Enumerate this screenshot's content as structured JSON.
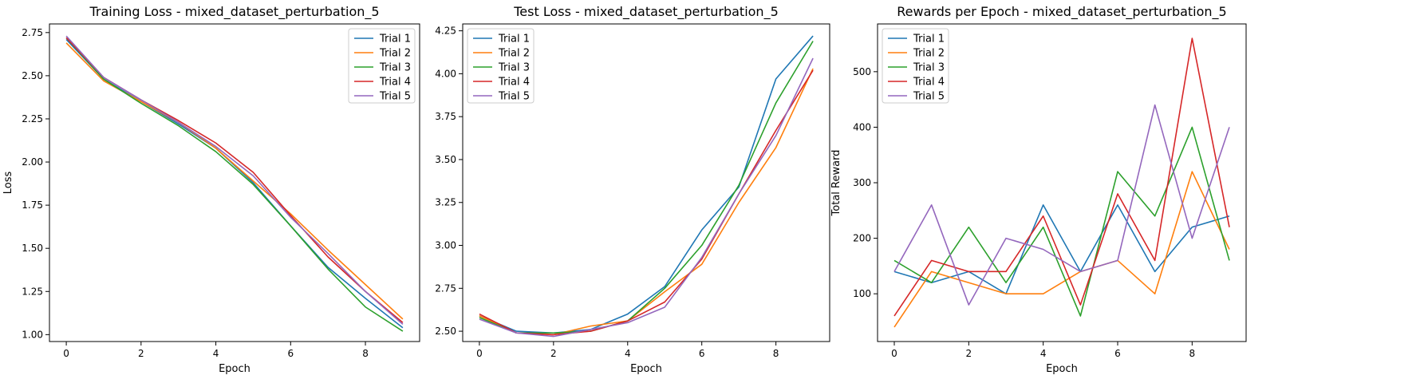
{
  "colors": [
    "#1f77b4",
    "#ff7f0e",
    "#2ca02c",
    "#d62728",
    "#9467bd"
  ],
  "chart_data": [
    {
      "type": "line",
      "title": "Training Loss - mixed_dataset_perturbation_5",
      "xlabel": "Epoch",
      "ylabel": "Loss",
      "x": [
        0,
        1,
        2,
        3,
        4,
        5,
        6,
        7,
        8,
        9
      ],
      "xlim": [
        -0.45,
        9.45
      ],
      "ylim": [
        0.96,
        2.8
      ],
      "xticks": [
        0,
        2,
        4,
        6,
        8
      ],
      "yticks": [
        1.0,
        1.25,
        1.5,
        1.75,
        2.0,
        2.25,
        2.5,
        2.75
      ],
      "legend": "top-right",
      "series": [
        {
          "name": "Trial 1",
          "values": [
            2.71,
            2.48,
            2.35,
            2.22,
            2.08,
            1.88,
            1.63,
            1.39,
            1.21,
            1.04
          ]
        },
        {
          "name": "Trial 2",
          "values": [
            2.69,
            2.47,
            2.35,
            2.23,
            2.08,
            1.89,
            1.7,
            1.49,
            1.29,
            1.09
          ]
        },
        {
          "name": "Trial 3",
          "values": [
            2.72,
            2.48,
            2.34,
            2.21,
            2.06,
            1.87,
            1.63,
            1.38,
            1.16,
            1.02
          ]
        },
        {
          "name": "Trial 4",
          "values": [
            2.72,
            2.49,
            2.36,
            2.24,
            2.11,
            1.94,
            1.69,
            1.45,
            1.25,
            1.07
          ]
        },
        {
          "name": "Trial 5",
          "values": [
            2.73,
            2.49,
            2.36,
            2.23,
            2.09,
            1.92,
            1.68,
            1.47,
            1.25,
            1.06
          ]
        }
      ]
    },
    {
      "type": "line",
      "title": "Test Loss - mixed_dataset_perturbation_5",
      "xlabel": "Epoch",
      "ylabel": "",
      "x": [
        0,
        1,
        2,
        3,
        4,
        5,
        6,
        7,
        8,
        9
      ],
      "xlim": [
        -0.45,
        9.45
      ],
      "ylim": [
        2.44,
        4.29
      ],
      "xticks": [
        0,
        2,
        4,
        6,
        8
      ],
      "yticks": [
        2.5,
        2.75,
        3.0,
        3.25,
        3.5,
        3.75,
        4.0,
        4.25
      ],
      "legend": "top-left",
      "series": [
        {
          "name": "Trial 1",
          "values": [
            2.59,
            2.5,
            2.49,
            2.51,
            2.6,
            2.76,
            3.09,
            3.34,
            3.97,
            4.22
          ]
        },
        {
          "name": "Trial 2",
          "values": [
            2.59,
            2.49,
            2.48,
            2.53,
            2.56,
            2.73,
            2.89,
            3.25,
            3.57,
            4.03
          ]
        },
        {
          "name": "Trial 3",
          "values": [
            2.58,
            2.49,
            2.49,
            2.5,
            2.56,
            2.75,
            3.0,
            3.35,
            3.83,
            4.19
          ]
        },
        {
          "name": "Trial 4",
          "values": [
            2.6,
            2.49,
            2.48,
            2.5,
            2.56,
            2.67,
            2.92,
            3.3,
            3.67,
            4.02
          ]
        },
        {
          "name": "Trial 5",
          "values": [
            2.57,
            2.49,
            2.47,
            2.51,
            2.55,
            2.64,
            2.93,
            3.3,
            3.64,
            4.09
          ]
        }
      ]
    },
    {
      "type": "line",
      "title": "Rewards per Epoch - mixed_dataset_perturbation_5",
      "xlabel": "Epoch",
      "ylabel": "Total Reward",
      "x": [
        0,
        1,
        2,
        3,
        4,
        5,
        6,
        7,
        8,
        9
      ],
      "xlim": [
        -0.45,
        9.45
      ],
      "ylim": [
        14,
        586
      ],
      "xticks": [
        0,
        2,
        4,
        6,
        8
      ],
      "yticks": [
        100,
        200,
        300,
        400,
        500
      ],
      "legend": "top-left",
      "series": [
        {
          "name": "Trial 1",
          "values": [
            140,
            120,
            140,
            100,
            260,
            140,
            260,
            140,
            220,
            240
          ]
        },
        {
          "name": "Trial 2",
          "values": [
            40,
            140,
            120,
            100,
            100,
            140,
            160,
            100,
            320,
            180
          ]
        },
        {
          "name": "Trial 3",
          "values": [
            160,
            120,
            220,
            120,
            220,
            60,
            320,
            240,
            400,
            160
          ]
        },
        {
          "name": "Trial 4",
          "values": [
            60,
            160,
            140,
            140,
            240,
            80,
            280,
            160,
            560,
            220
          ]
        },
        {
          "name": "Trial 5",
          "values": [
            140,
            260,
            80,
            200,
            180,
            140,
            160,
            440,
            200,
            400
          ]
        }
      ]
    }
  ]
}
